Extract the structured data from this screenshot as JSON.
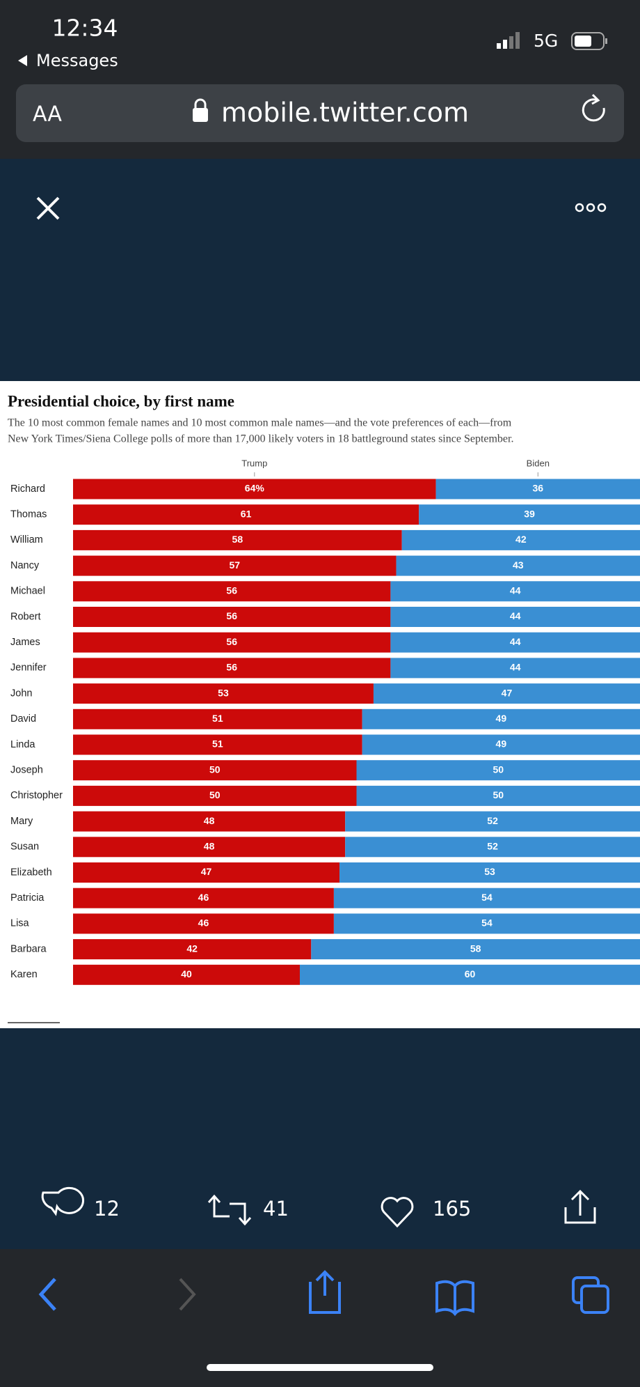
{
  "status_bar": {
    "time": "12:34",
    "back_label": "Messages",
    "network": "5G"
  },
  "address_bar": {
    "text_size": "AA",
    "url": "mobile.twitter.com"
  },
  "chart_data": {
    "type": "stacked_bar_horizontal",
    "title": "Presidential choice, by first name",
    "subtitle": [
      "The 10 most common female names and 10 most common male names—and the vote preferences of each—from",
      "New York Times/Siena College polls of more than 17,000 likely voters in 18 battleground states since September."
    ],
    "categories": [
      "Richard",
      "Thomas",
      "William",
      "Nancy",
      "Michael",
      "Robert",
      "James",
      "Jennifer",
      "John",
      "David",
      "Linda",
      "Joseph",
      "Christopher",
      "Mary",
      "Susan",
      "Elizabeth",
      "Patricia",
      "Lisa",
      "Barbara",
      "Karen"
    ],
    "series": [
      {
        "name": "Trump",
        "color": "#cc0a0a",
        "values": [
          64,
          61,
          58,
          57,
          56,
          56,
          56,
          56,
          53,
          51,
          51,
          50,
          50,
          48,
          48,
          47,
          46,
          46,
          42,
          40
        ],
        "value_labels": [
          "64%",
          "61",
          "58",
          "57",
          "56",
          "56",
          "56",
          "56",
          "53",
          "51",
          "51",
          "50",
          "50",
          "48",
          "48",
          "47",
          "46",
          "46",
          "42",
          "40"
        ]
      },
      {
        "name": "Biden",
        "color": "#3a8fd3",
        "values": [
          36,
          39,
          42,
          43,
          44,
          44,
          44,
          44,
          47,
          49,
          49,
          50,
          50,
          52,
          52,
          53,
          54,
          54,
          58,
          60
        ]
      }
    ],
    "xlim": [
      0,
      100
    ]
  },
  "tweet_actions": {
    "replies": 12,
    "retweets": 41,
    "likes": 165
  }
}
